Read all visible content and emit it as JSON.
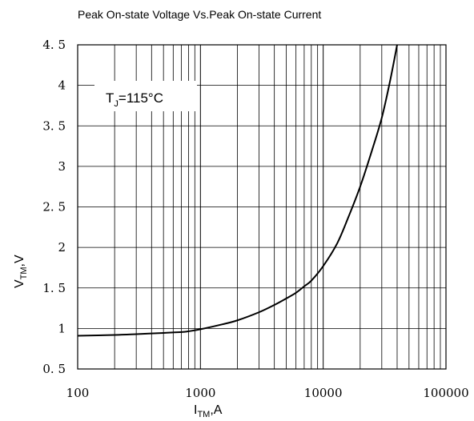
{
  "chart_data": {
    "type": "line",
    "title": "Peak On-state Voltage Vs.Peak On-state Current",
    "xlabel": {
      "main": "I",
      "sub": "TM",
      "rest": ",A"
    },
    "ylabel": {
      "main": "V",
      "sub": "TM",
      "rest": ",V"
    },
    "x_scale": "log",
    "xlim": [
      100,
      100000
    ],
    "ylim": [
      0.5,
      4.5
    ],
    "x_ticks": [
      100,
      1000,
      10000,
      100000
    ],
    "x_tick_labels": [
      "100",
      "1000",
      "10000",
      "100000"
    ],
    "y_ticks": [
      0.5,
      1,
      1.5,
      2,
      2.5,
      3,
      3.5,
      4,
      4.5
    ],
    "y_tick_labels": [
      "0. 5",
      "1",
      "1. 5",
      "2",
      "2. 5",
      "3",
      "3. 5",
      "4",
      "4. 5"
    ],
    "grid": true,
    "annotation": {
      "main": "T",
      "sub": "J",
      "rest": "=115°C"
    },
    "series": [
      {
        "x": [
          100,
          200,
          300,
          500,
          700,
          800,
          1000,
          1500,
          2000,
          3000,
          4000,
          5000,
          6000,
          7000,
          8000,
          10000,
          13000,
          16000,
          20000,
          25000,
          30000,
          35000,
          40000
        ],
        "y": [
          0.91,
          0.92,
          0.93,
          0.945,
          0.955,
          0.965,
          0.99,
          1.05,
          1.1,
          1.2,
          1.29,
          1.37,
          1.44,
          1.52,
          1.59,
          1.77,
          2.05,
          2.37,
          2.75,
          3.2,
          3.6,
          4.05,
          4.5
        ]
      }
    ]
  }
}
